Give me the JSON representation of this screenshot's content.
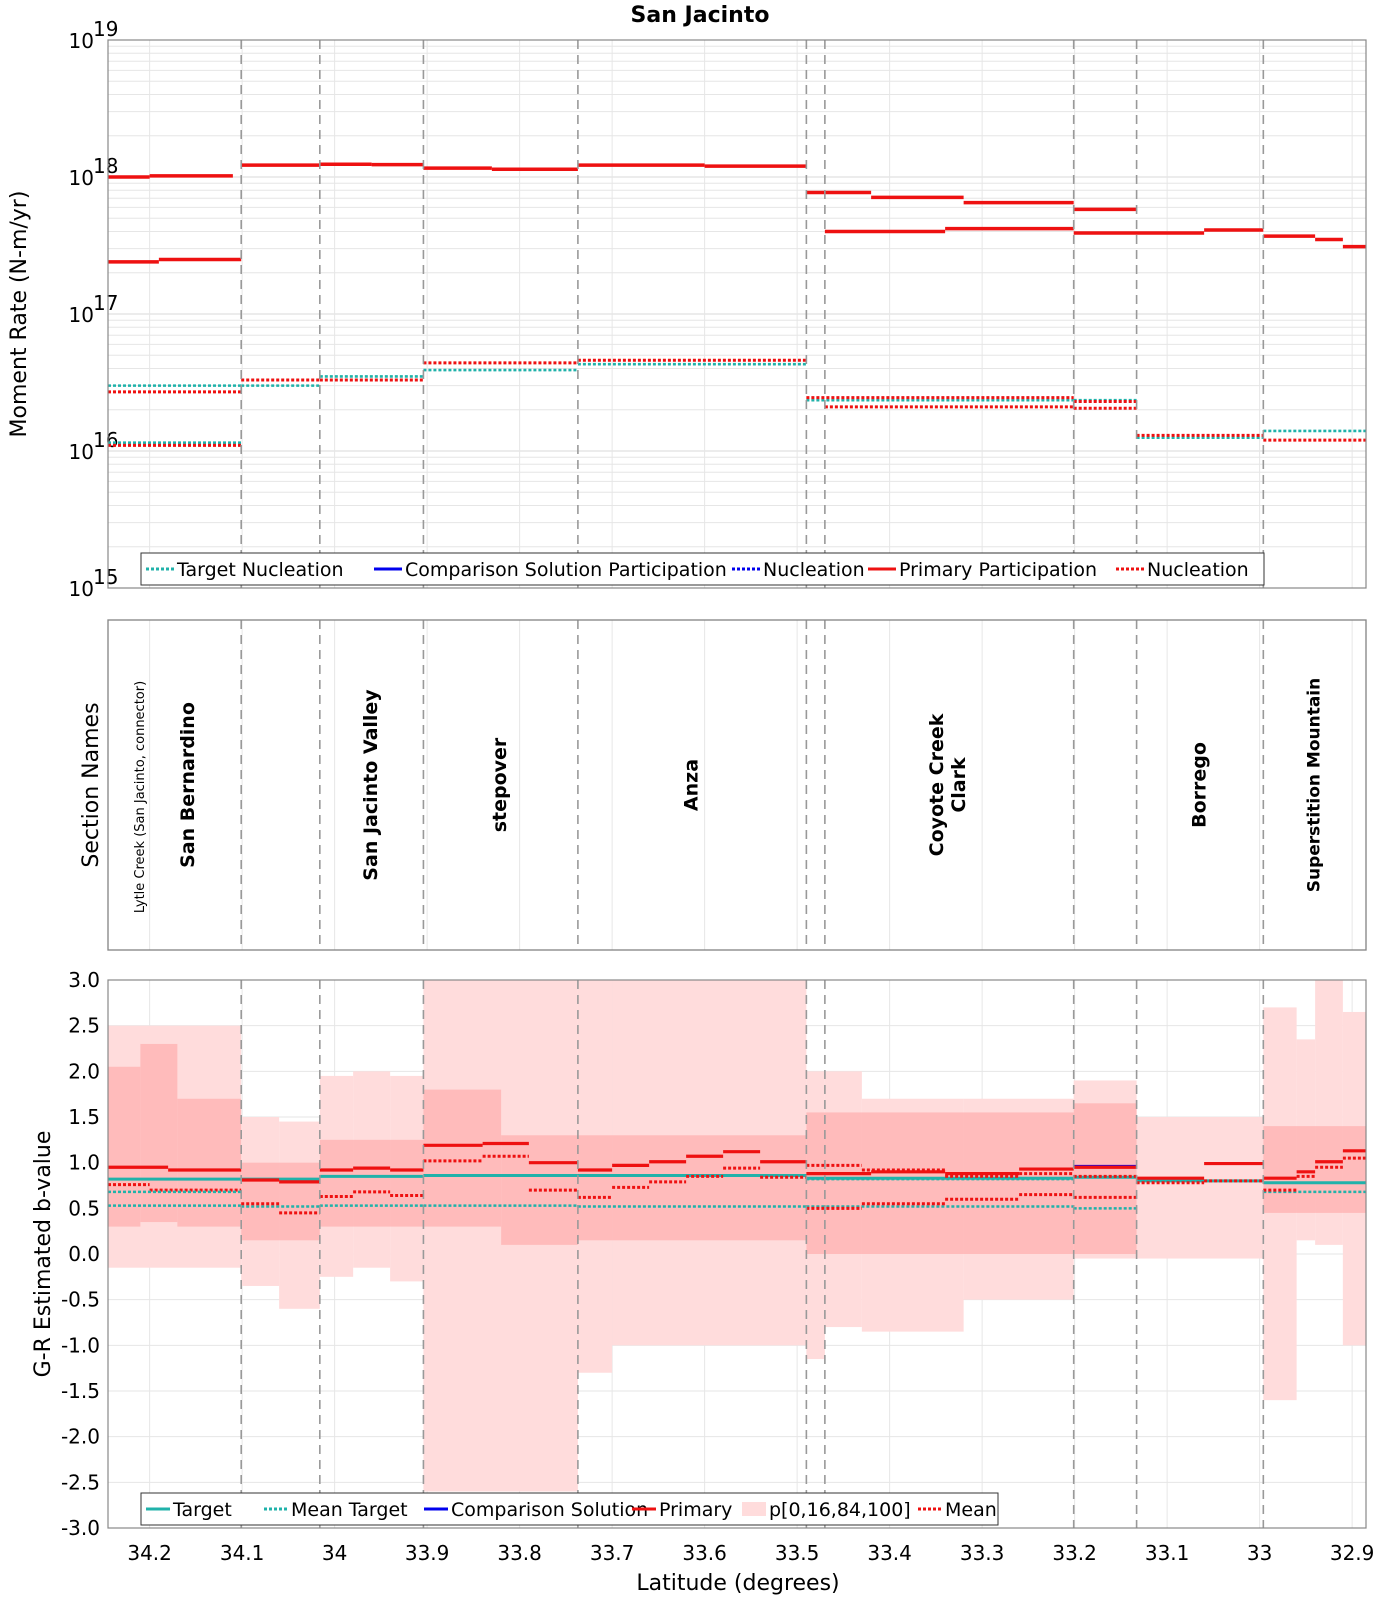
{
  "title": "San Jacinto",
  "colors": {
    "target": "#20b2aa",
    "comparison": "#0000ee",
    "primary": "#ee1111",
    "band_outer": "#ffdcdc",
    "band_inner": "#ffb0b0",
    "boundary": "#999999",
    "grid": "#e6e6e6",
    "icons": [
      "legend-line-icon",
      "legend-dotted-icon",
      "legend-patch-icon"
    ]
  },
  "x_axis": {
    "label": "Latitude (degrees)",
    "xlim": [
      34.245,
      32.885
    ],
    "ticks": [
      34.2,
      34.1,
      34.0,
      33.9,
      33.8,
      33.7,
      33.6,
      33.5,
      33.4,
      33.3,
      33.2,
      33.1,
      33.0,
      32.9
    ],
    "tick_labels": [
      "34.2",
      "34.1",
      "34",
      "33.9",
      "33.8",
      "33.7",
      "33.6",
      "33.5",
      "33.4",
      "33.3",
      "33.2",
      "33.1",
      "33",
      "32.9"
    ]
  },
  "boundaries": [
    34.101,
    34.016,
    33.904,
    33.737,
    33.49,
    33.47,
    33.201,
    33.133,
    32.996
  ],
  "chart_data": [
    {
      "type": "line",
      "panel": "moment_rate",
      "title": "San Jacinto",
      "ylabel": "Moment Rate (N-m/yr)",
      "yscale": "log",
      "ylim": [
        1000000000000000.0,
        1e+19
      ],
      "ytick_exponents": [
        "15",
        "16",
        "17",
        "18",
        "19"
      ],
      "ytick_base": "10",
      "legend": [
        "Target Nucleation",
        "Comparison Solution Participation",
        "Nucleation",
        "Primary Participation",
        "Nucleation"
      ],
      "series": [
        {
          "name": "Primary Participation",
          "style": "solid-red",
          "segments": [
            [
              34.245,
              34.2,
              1e+18
            ],
            [
              34.2,
              34.11,
              1.02e+18
            ],
            [
              34.101,
              34.016,
              1.22e+18
            ],
            [
              34.016,
              33.96,
              1.24e+18
            ],
            [
              33.96,
              33.904,
              1.23e+18
            ],
            [
              33.904,
              33.83,
              1.16e+18
            ],
            [
              33.83,
              33.737,
              1.14e+18
            ],
            [
              33.737,
              33.6,
              1.22e+18
            ],
            [
              33.6,
              33.49,
              1.2e+18
            ],
            [
              33.49,
              33.42,
              7.7e+17
            ],
            [
              33.42,
              33.32,
              7.1e+17
            ],
            [
              33.32,
              33.201,
              6.5e+17
            ],
            [
              33.201,
              33.133,
              5.8e+17
            ]
          ]
        },
        {
          "name": "Primary Participation (lower strand)",
          "style": "solid-red",
          "segments": [
            [
              34.245,
              34.19,
              2.4e+17
            ],
            [
              34.19,
              34.101,
              2.5e+17
            ],
            [
              33.47,
              33.34,
              4e+17
            ],
            [
              33.34,
              33.201,
              4.2e+17
            ],
            [
              33.201,
              33.06,
              3.9e+17
            ],
            [
              33.06,
              32.996,
              4.1e+17
            ],
            [
              32.996,
              32.94,
              3.7e+17
            ],
            [
              32.94,
              32.91,
              3.5e+17
            ],
            [
              32.91,
              32.885,
              3.1e+17
            ]
          ]
        },
        {
          "name": "Target Nucleation",
          "style": "dotted-teal",
          "segments": [
            [
              34.245,
              34.101,
              3e+16
            ],
            [
              34.101,
              34.016,
              3e+16
            ],
            [
              34.016,
              33.904,
              3.5e+16
            ],
            [
              33.904,
              33.737,
              3.9e+16
            ],
            [
              33.737,
              33.49,
              4.3e+16
            ],
            [
              33.49,
              33.201,
              2.35e+16
            ],
            [
              33.201,
              33.133,
              2.35e+16
            ],
            [
              33.133,
              32.996,
              1.25e+16
            ],
            [
              32.996,
              32.885,
              1.4e+16
            ]
          ]
        },
        {
          "name": "Target Nucleation (lower strand)",
          "style": "dotted-teal",
          "segments": [
            [
              34.245,
              34.101,
              1.15e+16
            ]
          ]
        },
        {
          "name": "Primary Nucleation",
          "style": "dotted-red",
          "segments": [
            [
              34.245,
              34.101,
              2.7e+16
            ],
            [
              34.101,
              34.016,
              3.3e+16
            ],
            [
              34.016,
              33.904,
              3.3e+16
            ],
            [
              33.904,
              33.737,
              4.4e+16
            ],
            [
              33.737,
              33.49,
              4.6e+16
            ],
            [
              33.49,
              33.201,
              2.45e+16
            ],
            [
              33.201,
              33.133,
              2.3e+16
            ],
            [
              33.133,
              32.996,
              1.3e+16
            ],
            [
              32.996,
              32.885,
              1.2e+16
            ]
          ]
        },
        {
          "name": "Primary Nucleation (lower strand)",
          "style": "dotted-red",
          "segments": [
            [
              34.245,
              34.101,
              1.1e+16
            ],
            [
              33.47,
              33.201,
              2.1e+16
            ],
            [
              33.201,
              33.133,
              2.05e+16
            ]
          ]
        }
      ]
    },
    {
      "type": "table",
      "panel": "section_names",
      "ylabel": "Section Names",
      "sections": [
        {
          "name": "Lytle Creek (San Jacinto, connector)",
          "from": 34.245,
          "to": 34.101,
          "offset": -34,
          "style": "small"
        },
        {
          "name": "San Bernardino",
          "from": 34.245,
          "to": 34.101,
          "offset": 14,
          "style": "bold"
        },
        {
          "name": "San Jacinto Valley",
          "from": 34.016,
          "to": 33.904,
          "offset": 0,
          "style": "bold"
        },
        {
          "name": "stepover",
          "from": 33.904,
          "to": 33.737,
          "offset": 0,
          "style": "bold"
        },
        {
          "name": "Anza",
          "from": 33.737,
          "to": 33.49,
          "offset": 0,
          "style": "bold"
        },
        {
          "name": "Coyote Creek",
          "from": 33.47,
          "to": 33.201,
          "offset": -12,
          "style": "bold"
        },
        {
          "name": "Clark",
          "from": 33.47,
          "to": 33.201,
          "offset": 10,
          "style": "bold"
        },
        {
          "name": "Borrego",
          "from": 33.133,
          "to": 32.996,
          "offset": 0,
          "style": "bold"
        },
        {
          "name": "Superstition Mountain",
          "from": 32.996,
          "to": 32.885,
          "offset": 0,
          "style": "med"
        }
      ]
    },
    {
      "type": "line",
      "panel": "b_value",
      "ylabel": "G-R Estimated b-value",
      "ylim": [
        -3.0,
        3.0
      ],
      "yticks": [
        "3.0",
        "2.5",
        "2.0",
        "1.5",
        "1.0",
        "0.5",
        "0.0",
        "-0.5",
        "-1.0",
        "-1.5",
        "-2.0",
        "-2.5",
        "-3.0"
      ],
      "legend": [
        "Target",
        "Mean Target",
        "Comparison Solution",
        "Primary",
        "p[0,16,84,100]",
        "Mean"
      ],
      "outer_band": [
        [
          34.245,
          34.101,
          -0.15,
          2.5
        ],
        [
          34.101,
          34.06,
          -0.35,
          1.5
        ],
        [
          34.06,
          34.016,
          -0.6,
          1.45
        ],
        [
          34.016,
          33.98,
          -0.25,
          1.95
        ],
        [
          33.98,
          33.94,
          -0.15,
          2.0
        ],
        [
          33.94,
          33.904,
          -0.3,
          1.95
        ],
        [
          33.904,
          33.737,
          -2.6,
          3.0
        ],
        [
          33.737,
          33.7,
          -1.3,
          3.0
        ],
        [
          33.7,
          33.49,
          -1.0,
          3.0
        ],
        [
          33.49,
          33.47,
          -1.15,
          2.0
        ],
        [
          33.47,
          33.43,
          -0.8,
          2.0
        ],
        [
          33.43,
          33.32,
          -0.85,
          1.7
        ],
        [
          33.32,
          33.201,
          -0.5,
          1.7
        ],
        [
          33.201,
          33.133,
          -0.05,
          1.9
        ],
        [
          33.133,
          32.996,
          -0.05,
          1.5
        ],
        [
          32.996,
          32.96,
          -1.6,
          2.7
        ],
        [
          32.96,
          32.94,
          0.15,
          2.35
        ],
        [
          32.94,
          32.91,
          0.1,
          3.0
        ],
        [
          32.91,
          32.885,
          -1.0,
          2.65
        ]
      ],
      "inner_band": [
        [
          34.245,
          34.21,
          0.3,
          2.05
        ],
        [
          34.21,
          34.17,
          0.35,
          2.3
        ],
        [
          34.17,
          34.101,
          0.3,
          1.7
        ],
        [
          34.101,
          34.016,
          0.15,
          1.0
        ],
        [
          34.016,
          33.904,
          0.3,
          1.25
        ],
        [
          33.904,
          33.82,
          0.3,
          1.8
        ],
        [
          33.82,
          33.737,
          0.1,
          1.3
        ],
        [
          33.737,
          33.49,
          0.15,
          1.3
        ],
        [
          33.49,
          33.201,
          0.0,
          1.55
        ],
        [
          33.201,
          33.133,
          0.0,
          1.65
        ],
        [
          32.996,
          32.885,
          0.45,
          1.4
        ]
      ],
      "series": [
        {
          "name": "Target",
          "segments": [
            [
              34.245,
              34.101,
              0.82
            ],
            [
              34.101,
              34.016,
              0.82
            ],
            [
              34.016,
              33.904,
              0.85
            ],
            [
              33.904,
              33.737,
              0.86
            ],
            [
              33.737,
              33.49,
              0.86
            ],
            [
              33.49,
              33.201,
              0.83
            ],
            [
              33.201,
              33.133,
              0.84
            ],
            [
              33.133,
              32.996,
              0.8
            ],
            [
              32.996,
              32.885,
              0.78
            ]
          ]
        },
        {
          "name": "Mean Target",
          "segments": [
            [
              34.245,
              34.101,
              0.53
            ],
            [
              34.101,
              34.016,
              0.52
            ],
            [
              34.016,
              33.904,
              0.53
            ],
            [
              33.904,
              33.737,
              0.53
            ],
            [
              33.737,
              33.49,
              0.52
            ],
            [
              33.49,
              33.201,
              0.52
            ],
            [
              33.201,
              33.133,
              0.5
            ],
            [
              33.133,
              32.996,
              0.8
            ],
            [
              32.996,
              32.885,
              0.68
            ]
          ]
        },
        {
          "name": "Comparison Solution",
          "segments": [
            [
              33.201,
              33.133,
              0.96
            ]
          ]
        },
        {
          "name": "Primary",
          "segments": [
            [
              34.245,
              34.18,
              0.95
            ],
            [
              34.18,
              34.101,
              0.92
            ],
            [
              34.101,
              34.06,
              0.81
            ],
            [
              34.06,
              34.016,
              0.79
            ],
            [
              34.016,
              33.98,
              0.92
            ],
            [
              33.98,
              33.94,
              0.94
            ],
            [
              33.94,
              33.904,
              0.92
            ],
            [
              33.904,
              33.84,
              1.19
            ],
            [
              33.84,
              33.79,
              1.21
            ],
            [
              33.79,
              33.737,
              1.0
            ],
            [
              33.737,
              33.7,
              0.92
            ],
            [
              33.7,
              33.66,
              0.97
            ],
            [
              33.66,
              33.62,
              1.01
            ],
            [
              33.62,
              33.58,
              1.07
            ],
            [
              33.58,
              33.54,
              1.12
            ],
            [
              33.54,
              33.49,
              1.01
            ],
            [
              33.49,
              33.42,
              0.88
            ],
            [
              33.42,
              33.34,
              0.9
            ],
            [
              33.34,
              33.26,
              0.88
            ],
            [
              33.26,
              33.201,
              0.93
            ],
            [
              33.201,
              33.133,
              0.95
            ],
            [
              33.133,
              33.06,
              0.83
            ],
            [
              33.06,
              32.996,
              0.99
            ],
            [
              32.996,
              32.96,
              0.83
            ],
            [
              32.96,
              32.94,
              0.9
            ],
            [
              32.94,
              32.91,
              1.01
            ],
            [
              32.91,
              32.885,
              1.13
            ]
          ]
        },
        {
          "name": "Mean",
          "segments": [
            [
              34.245,
              34.2,
              0.76
            ],
            [
              34.2,
              34.101,
              0.7
            ],
            [
              34.101,
              34.06,
              0.55
            ],
            [
              34.06,
              34.016,
              0.45
            ],
            [
              34.016,
              33.98,
              0.63
            ],
            [
              33.98,
              33.94,
              0.68
            ],
            [
              33.94,
              33.904,
              0.64
            ],
            [
              33.904,
              33.84,
              1.02
            ],
            [
              33.84,
              33.79,
              1.07
            ],
            [
              33.79,
              33.737,
              0.7
            ],
            [
              33.737,
              33.7,
              0.62
            ],
            [
              33.7,
              33.66,
              0.73
            ],
            [
              33.66,
              33.62,
              0.79
            ],
            [
              33.62,
              33.58,
              0.85
            ],
            [
              33.58,
              33.54,
              0.94
            ],
            [
              33.54,
              33.49,
              0.84
            ],
            [
              33.49,
              33.43,
              0.97
            ],
            [
              33.43,
              33.34,
              0.92
            ],
            [
              33.34,
              33.26,
              0.85
            ],
            [
              33.26,
              33.201,
              0.88
            ],
            [
              33.201,
              33.133,
              0.85
            ],
            [
              33.133,
              33.06,
              0.78
            ],
            [
              33.06,
              32.996,
              0.8
            ],
            [
              32.996,
              32.96,
              0.7
            ],
            [
              32.96,
              32.94,
              0.85
            ],
            [
              32.94,
              32.91,
              0.95
            ],
            [
              32.91,
              32.885,
              1.05
            ]
          ]
        },
        {
          "name": "Mean (lower strand)",
          "segments": [
            [
              33.49,
              33.43,
              0.5
            ],
            [
              33.43,
              33.34,
              0.55
            ],
            [
              33.34,
              33.26,
              0.6
            ],
            [
              33.26,
              33.201,
              0.65
            ],
            [
              33.201,
              33.133,
              0.62
            ]
          ]
        },
        {
          "name": "Mean Target (upper strand)",
          "segments": [
            [
              34.245,
              34.101,
              0.68
            ],
            [
              33.49,
              33.201,
              0.82
            ]
          ]
        }
      ]
    }
  ]
}
